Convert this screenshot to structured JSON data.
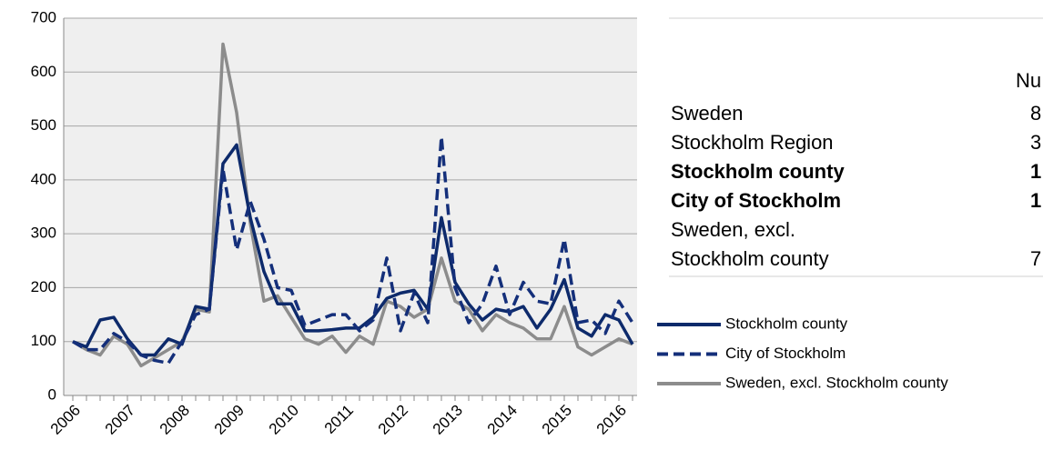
{
  "chart_data": {
    "type": "line",
    "categories": [
      "2006",
      null,
      null,
      null,
      "2007",
      null,
      null,
      null,
      "2008",
      null,
      null,
      null,
      "2009",
      null,
      null,
      null,
      "2010",
      null,
      null,
      null,
      "2011",
      null,
      null,
      null,
      "2012",
      null,
      null,
      null,
      "2013",
      null,
      null,
      null,
      "2014",
      null,
      null,
      null,
      "2015",
      null,
      null,
      null,
      "2016",
      null
    ],
    "series": [
      {
        "name": "Stockholm county",
        "color": "#0d2a6b",
        "dash": false,
        "values": [
          100,
          90,
          140,
          145,
          105,
          75,
          75,
          105,
          95,
          165,
          160,
          430,
          465,
          330,
          230,
          170,
          170,
          120,
          120,
          122,
          125,
          125,
          145,
          180,
          190,
          195,
          160,
          330,
          210,
          170,
          140,
          160,
          155,
          165,
          125,
          160,
          215,
          125,
          110,
          150,
          140,
          95
        ]
      },
      {
        "name": "City of Stockholm",
        "color": "#142f7a",
        "dash": true,
        "values": [
          100,
          85,
          85,
          115,
          100,
          75,
          65,
          60,
          100,
          150,
          160,
          420,
          270,
          360,
          290,
          200,
          195,
          130,
          140,
          150,
          150,
          120,
          140,
          255,
          120,
          190,
          135,
          480,
          200,
          135,
          170,
          240,
          150,
          210,
          175,
          170,
          290,
          135,
          140,
          115,
          175,
          135
        ]
      },
      {
        "name": "Sweden, excl. Stockholm county",
        "color": "#8c8c8c",
        "dash": false,
        "values": [
          100,
          85,
          75,
          110,
          95,
          55,
          70,
          85,
          100,
          160,
          155,
          652,
          525,
          320,
          175,
          185,
          145,
          105,
          95,
          110,
          80,
          110,
          95,
          175,
          165,
          145,
          160,
          255,
          175,
          160,
          120,
          150,
          135,
          125,
          105,
          105,
          165,
          90,
          75,
          90,
          105,
          95
        ]
      }
    ],
    "ylim": [
      0,
      700
    ],
    "yticks": [
      0,
      100,
      200,
      300,
      400,
      500,
      600,
      700
    ],
    "grid": true
  },
  "table": {
    "header": "Nu",
    "rows": [
      {
        "lines": [
          "Sweden"
        ],
        "value": "8",
        "bold": false
      },
      {
        "lines": [
          "Stockholm Region"
        ],
        "value": "3",
        "bold": false
      },
      {
        "lines": [
          "Stockholm county"
        ],
        "value": "1",
        "bold": true
      },
      {
        "lines": [
          "City of Stockholm"
        ],
        "value": "1",
        "bold": true
      },
      {
        "lines": [
          "Sweden, excl.",
          "Stockholm county"
        ],
        "value": "7",
        "bold": false
      }
    ]
  }
}
